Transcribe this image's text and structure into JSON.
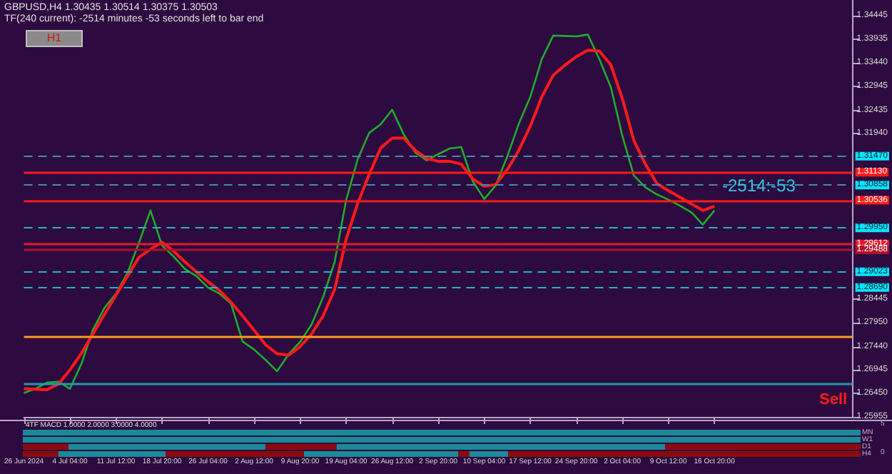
{
  "chart_data": [
    {
      "type": "line",
      "title": "GBPUSD,H4  1.30435 1.30514 1.30375 1.30503",
      "subtitle": "TF(240 current): -2514 minutes -53 seconds left to bar end",
      "annotations": [
        "H1",
        "-2514:-53",
        "Sell"
      ],
      "categories": [
        "26 Jun 2024",
        null,
        null,
        null,
        "4 Jul 04:00",
        null,
        null,
        null,
        "11 Jul 12:00",
        null,
        null,
        null,
        "18 Jul 20:00",
        null,
        null,
        null,
        "26 Jul 04:00",
        null,
        null,
        null,
        "2 Aug 12:00",
        null,
        null,
        null,
        "9 Aug 20:00",
        null,
        null,
        null,
        "19 Aug 04:00",
        null,
        null,
        null,
        "26 Aug 12:00",
        null,
        null,
        null,
        "2 Sep 20:00",
        null,
        null,
        null,
        "10 Sep 04:00",
        null,
        null,
        null,
        "17 Sep 12:00",
        null,
        null,
        null,
        "24 Sep 20:00",
        null,
        null,
        null,
        "2 Oct 04:00",
        null,
        null,
        null,
        "9 Oct 12:00",
        null,
        null,
        null,
        "16 Oct 20:00",
        null,
        null,
        null,
        null,
        null,
        null,
        null,
        null,
        null,
        null,
        null,
        null
      ],
      "ylim": [
        1.25955,
        1.3477
      ],
      "yticks": [
        1.25955,
        {
          "value": 1.2645,
          "label": "1.26450"
        },
        1.26945,
        {
          "value": 1.2744,
          "label": "1.27440"
        },
        {
          "value": 1.2795,
          "label": "1.27950"
        },
        1.28445,
        {
          "value": 1.3194,
          "label": "1.31940"
        },
        1.32435,
        1.32945,
        {
          "value": 1.3344,
          "label": "1.33440"
        },
        1.33935,
        1.34445
      ],
      "grid": false,
      "marker": "none",
      "series": [
        {
          "color": "#1fae2a",
          "values": [
            1.2646,
            1.2655,
            1.2668,
            1.267,
            1.2655,
            1.2708,
            1.278,
            1.2826,
            1.2856,
            1.29,
            1.2964,
            1.3032,
            1.2958,
            1.2935,
            1.2908,
            1.2893,
            1.2869,
            1.2856,
            1.2835,
            1.2755,
            1.2738,
            1.2716,
            1.2692,
            1.2728,
            1.2754,
            1.2791,
            1.2849,
            1.2923,
            1.3054,
            1.314,
            1.3196,
            1.3214,
            1.3245,
            1.3193,
            1.3155,
            1.3138,
            1.3151,
            1.3163,
            1.3166,
            1.3094,
            1.3056,
            1.3085,
            1.3146,
            1.3215,
            1.3272,
            1.3352,
            1.3402,
            1.3401,
            1.34,
            1.3404,
            1.3352,
            1.3293,
            1.319,
            1.3106,
            1.3081,
            1.3066,
            1.3055,
            1.3042,
            1.3028,
            1.3002,
            1.3032,
            null,
            null,
            null,
            null,
            null,
            null,
            null,
            null,
            null,
            null,
            null,
            null
          ]
        },
        {
          "color": "#ff1a1a",
          "values": [
            1.2655,
            1.2654,
            1.2653,
            1.2665,
            1.2695,
            1.273,
            1.2771,
            1.2812,
            1.2853,
            1.2893,
            1.2933,
            1.295,
            1.2965,
            1.2946,
            1.2923,
            1.2902,
            1.2881,
            1.2863,
            1.2838,
            1.2809,
            1.2779,
            1.2748,
            1.2729,
            1.2726,
            1.2744,
            1.2771,
            1.2809,
            1.2865,
            1.2971,
            1.3047,
            1.3108,
            1.3164,
            1.3185,
            1.3185,
            1.3159,
            1.3142,
            1.3136,
            1.3136,
            1.313,
            1.3099,
            1.3083,
            1.3087,
            1.3118,
            1.3159,
            1.321,
            1.3272,
            1.3318,
            1.3339,
            1.3357,
            1.3371,
            1.3369,
            1.334,
            1.3269,
            1.318,
            1.313,
            1.3089,
            1.3074,
            1.306,
            1.3046,
            1.3032,
            1.3041,
            null,
            null,
            null,
            null,
            null,
            null,
            null,
            null,
            null,
            null,
            null,
            null
          ]
        }
      ],
      "ref_lines": [
        {
          "axis": "y",
          "value": 1.3147,
          "label": "1.31470",
          "color": "#3c8fb0",
          "line_style": "dashed"
        },
        {
          "axis": "y",
          "value": 1.3113,
          "label": "1.31130",
          "color": "#ff1a1a",
          "line_style": "solid"
        },
        {
          "axis": "y",
          "value": 1.30858,
          "label": "1.30858",
          "color": "#3c8fb0",
          "line_style": "dashed"
        },
        {
          "axis": "y",
          "value": 1.30536,
          "label": "1.30536",
          "color": "#ff1a1a",
          "line_style": "solid"
        },
        {
          "axis": "y",
          "value": 1.2995,
          "label": "1.29950",
          "color": "#25b4cc",
          "line_style": "dashed"
        },
        {
          "axis": "y",
          "value": 1.29612,
          "label": "1.29612",
          "color": "#e8182a",
          "line_style": "solid"
        },
        {
          "axis": "y",
          "value": 1.29488,
          "label": "1.29488",
          "color": "#b0102a",
          "line_style": "solid"
        },
        {
          "axis": "y",
          "value": 1.29023,
          "label": "1.29023",
          "color": "#25b4cc",
          "line_style": "dashed"
        },
        {
          "axis": "y",
          "value": 1.2869,
          "label": "1.28690",
          "color": "#25b4cc",
          "line_style": "dashed"
        },
        {
          "axis": "y",
          "value": 1.2765,
          "color": "#ff9a1a",
          "line_style": "solid"
        },
        {
          "axis": "y",
          "value": 1.2667,
          "color": "#1e9ab0",
          "line_style": "solid"
        }
      ]
    },
    {
      "type": "other",
      "title": "4TF MACD 1.0000 2.0000 3.0000 4.0000",
      "annotations": [
        "MN",
        "W1",
        "D1",
        "H4",
        "5",
        "0"
      ]
    }
  ]
}
